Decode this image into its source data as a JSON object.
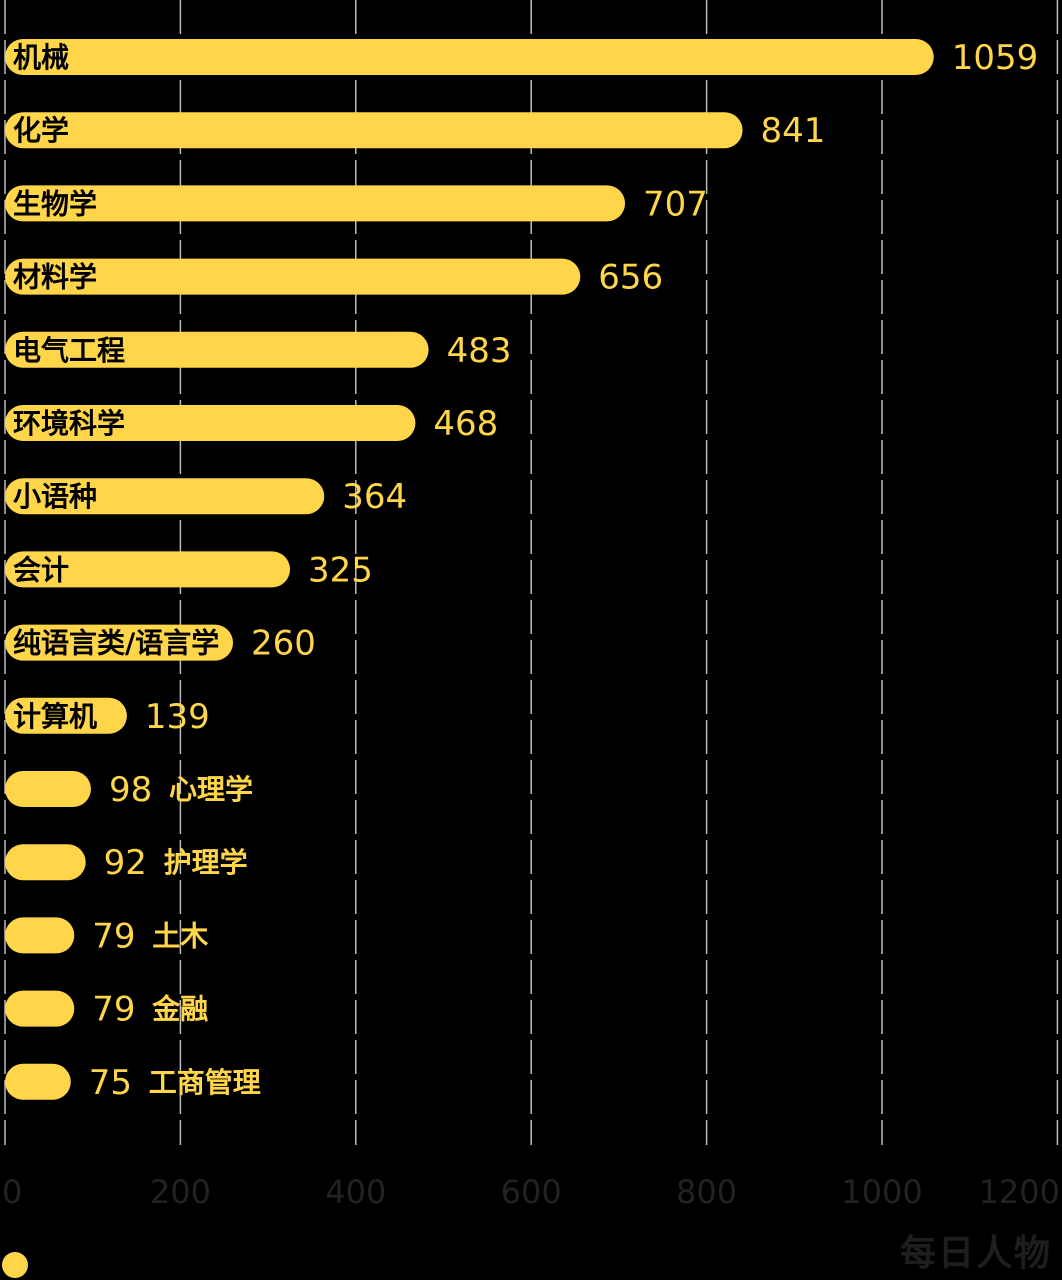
{
  "chart_data": {
    "type": "bar",
    "orientation": "horizontal",
    "categories": [
      "机械",
      "化学",
      "生物学",
      "材料学",
      "电气工程",
      "环境科学",
      "小语种",
      "会计",
      "纯语言类/语言学",
      "计算机",
      "心理学",
      "护理学",
      "土木",
      "金融",
      "工商管理"
    ],
    "values": [
      1059,
      841,
      707,
      656,
      483,
      468,
      364,
      325,
      260,
      139,
      98,
      92,
      79,
      79,
      75
    ],
    "xlim": [
      0,
      1200
    ],
    "xticks": [
      0,
      200,
      400,
      600,
      800,
      1000,
      1200
    ],
    "xtick_labels": [
      "0",
      "200",
      "400",
      "600",
      "800",
      "1000",
      "1200"
    ],
    "grid": "vertical dashed",
    "colors": {
      "bar": "#FFD54A",
      "background": "#000000",
      "grid": "#bbbbbb",
      "tick": "#222222"
    }
  },
  "watermark": "每日人物"
}
